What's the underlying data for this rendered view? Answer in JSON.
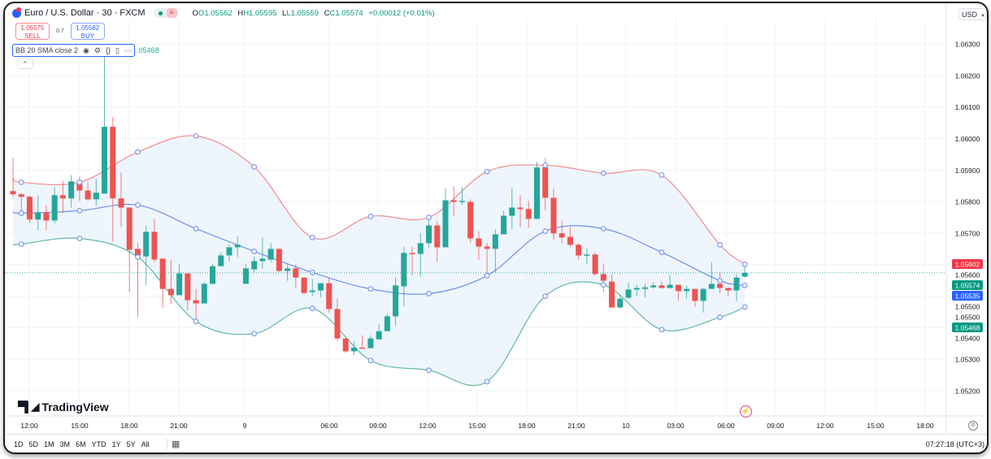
{
  "header": {
    "symbol": "Euro / U.S. Dollar · 30 · FXCM",
    "open": "O1.05562",
    "high": "H1.05595",
    "low": "L1.05559",
    "close": "C1.05574",
    "change": "+0.00012 (+0.01%)"
  },
  "trade": {
    "sell_price": "1.05575",
    "sell_label": "SELL",
    "spread": "0.7",
    "buy_price": "1.05582",
    "buy_label": "BUY"
  },
  "indicator": {
    "label": "BB 20 SMA close 2",
    "value_fragment": ".05468",
    "icons": [
      "eye-icon",
      "settings-icon",
      "source-code-icon",
      "trash-icon",
      "more-icon"
    ]
  },
  "currency": "USD",
  "brand": "TradingView",
  "ranges": [
    "1D",
    "5D",
    "1M",
    "3M",
    "6M",
    "YTD",
    "1Y",
    "5Y",
    "All"
  ],
  "clock": "07:27:18 (UTC+3)",
  "colors": {
    "up": "#26a69a",
    "down": "#ef5350",
    "bb_upper": "#f28b8b",
    "bb_basis": "#6f8ff0",
    "bb_lower": "#5fb8a5",
    "bb_fill": "#eaf3fd"
  },
  "chart_data": {
    "type": "candlestick",
    "interval": "30",
    "ylim": [
      1.052,
      1.063
    ],
    "price_ticks": [
      "1.06300",
      "1.06200",
      "1.06100",
      "1.06000",
      "1.05900",
      "1.05800",
      "1.05700",
      "1.05600",
      "1.05500",
      "1.05400",
      "1.05300",
      "1.05200"
    ],
    "time_ticks": [
      "12:00",
      "15:00",
      "18:00",
      "21:00",
      "9",
      "06:00",
      "09:00",
      "12:00",
      "15:00",
      "18:00",
      "21:00",
      "10",
      "03:00",
      "06:00",
      "09:00",
      "12:00",
      "15:00",
      "18:00"
    ],
    "price_labels": {
      "bb_upper": "1.05602",
      "last": "1.05574",
      "bb_basis": "1.05535",
      "tick": "1.05500",
      "bb_lower": "1.05468"
    },
    "ohlc": [
      [
        1.05833,
        1.05939,
        1.05815,
        1.05823
      ],
      [
        1.05823,
        1.05828,
        1.05771,
        1.05815
      ],
      [
        1.05815,
        1.0582,
        1.05732,
        1.05743
      ],
      [
        1.05743,
        1.0582,
        1.05709,
        1.05766
      ],
      [
        1.05766,
        1.05789,
        1.05709,
        1.0574
      ],
      [
        1.0574,
        1.05846,
        1.0573,
        1.0582
      ],
      [
        1.0582,
        1.05866,
        1.05763,
        1.0581
      ],
      [
        1.0581,
        1.05884,
        1.05781,
        1.05864
      ],
      [
        1.05856,
        1.05879,
        1.05802,
        1.05835
      ],
      [
        1.05835,
        1.05861,
        1.05802,
        1.05807
      ],
      [
        1.05807,
        1.05872,
        1.05786,
        1.05828
      ],
      [
        1.05825,
        1.063,
        1.05825,
        1.06037
      ],
      [
        1.06037,
        1.06068,
        1.05673,
        1.0581
      ],
      [
        1.0581,
        1.05892,
        1.05719,
        1.05781
      ],
      [
        1.05781,
        1.05781,
        1.05513,
        1.05647
      ],
      [
        1.0565,
        1.05668,
        1.05433,
        1.05629
      ],
      [
        1.05626,
        1.05724,
        1.05536,
        1.05704
      ],
      [
        1.05704,
        1.05745,
        1.05608,
        1.05616
      ],
      [
        1.05619,
        1.05619,
        1.05464,
        1.05523
      ],
      [
        1.05523,
        1.05616,
        1.05474,
        1.05503
      ],
      [
        1.05503,
        1.05603,
        1.05503,
        1.05572
      ],
      [
        1.05572,
        1.05572,
        1.05454,
        1.05487
      ],
      [
        1.05487,
        1.05523,
        1.05428,
        1.05477
      ],
      [
        1.05477,
        1.05544,
        1.05477,
        1.05539
      ],
      [
        1.05539,
        1.05601,
        1.05539,
        1.05595
      ],
      [
        1.05595,
        1.05639,
        1.05595,
        1.05629
      ],
      [
        1.05629,
        1.05665,
        1.05611,
        1.05655
      ],
      [
        1.05655,
        1.05691,
        1.05624,
        1.05663
      ],
      [
        1.05539,
        1.05601,
        1.05539,
        1.05588
      ],
      [
        1.05585,
        1.05626,
        1.05575,
        1.05611
      ],
      [
        1.05611,
        1.05686,
        1.05588,
        1.05619
      ],
      [
        1.05616,
        1.05668,
        1.05608,
        1.0565
      ],
      [
        1.0565,
        1.0565,
        1.05575,
        1.0558
      ],
      [
        1.0558,
        1.05603,
        1.05549,
        1.05588
      ],
      [
        1.05588,
        1.05601,
        1.05526,
        1.05559
      ],
      [
        1.05559,
        1.05559,
        1.05505,
        1.0551
      ],
      [
        1.05513,
        1.05554,
        1.055,
        1.05518
      ],
      [
        1.05518,
        1.05541,
        1.05497,
        1.05541
      ],
      [
        1.05541,
        1.05559,
        1.05446,
        1.05459
      ],
      [
        1.05459,
        1.05492,
        1.05358,
        1.05366
      ],
      [
        1.05366,
        1.05366,
        1.05319,
        1.05325
      ],
      [
        1.05325,
        1.05358,
        1.05312,
        1.05337
      ],
      [
        1.05337,
        1.05376,
        1.05335,
        1.05335
      ],
      [
        1.05335,
        1.05376,
        1.05335,
        1.05366
      ],
      [
        1.05363,
        1.05412,
        1.05363,
        1.05389
      ],
      [
        1.05389,
        1.05443,
        1.05389,
        1.05436
      ],
      [
        1.05436,
        1.05559,
        1.05407,
        1.05534
      ],
      [
        1.05531,
        1.05657,
        1.05469,
        1.05637
      ],
      [
        1.05637,
        1.05657,
        1.05565,
        1.05634
      ],
      [
        1.05634,
        1.05699,
        1.05562,
        1.05668
      ],
      [
        1.05668,
        1.05743,
        1.05652,
        1.05724
      ],
      [
        1.05724,
        1.05737,
        1.05608,
        1.05655
      ],
      [
        1.05655,
        1.05841,
        1.05655,
        1.05804
      ],
      [
        1.05804,
        1.05848,
        1.05755,
        1.05799
      ],
      [
        1.05799,
        1.05846,
        1.05789,
        1.05802
      ],
      [
        1.05799,
        1.05807,
        1.0567,
        1.05683
      ],
      [
        1.05683,
        1.05706,
        1.05616,
        1.05657
      ],
      [
        1.05657,
        1.05668,
        1.05565,
        1.0565
      ],
      [
        1.0565,
        1.05712,
        1.05577,
        1.05696
      ],
      [
        1.05696,
        1.05771,
        1.05696,
        1.05755
      ],
      [
        1.05755,
        1.05843,
        1.05712,
        1.05781
      ],
      [
        1.05781,
        1.0582,
        1.05719,
        1.05776
      ],
      [
        1.05776,
        1.05802,
        1.05717,
        1.05745
      ],
      [
        1.05745,
        1.05926,
        1.05745,
        1.05908
      ],
      [
        1.05908,
        1.05939,
        1.05771,
        1.05812
      ],
      [
        1.05812,
        1.05841,
        1.05678,
        1.05699
      ],
      [
        1.05699,
        1.0574,
        1.05668,
        1.05686
      ],
      [
        1.05688,
        1.05719,
        1.05655,
        1.05663
      ],
      [
        1.05663,
        1.05668,
        1.05616,
        1.05629
      ],
      [
        1.05629,
        1.05652,
        1.05601,
        1.05632
      ],
      [
        1.05632,
        1.05639,
        1.05565,
        1.0557
      ],
      [
        1.0557,
        1.05603,
        1.05513,
        1.05549
      ],
      [
        1.05546,
        1.0557,
        1.05464,
        1.05464
      ],
      [
        1.05464,
        1.05505,
        1.05461,
        1.05492
      ],
      [
        1.05495,
        1.05544,
        1.05492,
        1.05521
      ],
      [
        1.05521,
        1.05536,
        1.055,
        1.05526
      ],
      [
        1.05523,
        1.05539,
        1.05495,
        1.05528
      ],
      [
        1.05528,
        1.05544,
        1.05523,
        1.05534
      ],
      [
        1.05534,
        1.05546,
        1.05523,
        1.05526
      ],
      [
        1.05526,
        1.05567,
        1.05523,
        1.05536
      ],
      [
        1.05536,
        1.05536,
        1.05485,
        1.05516
      ],
      [
        1.05516,
        1.05534,
        1.05492,
        1.05523
      ],
      [
        1.05523,
        1.05523,
        1.05466,
        1.05485
      ],
      [
        1.05485,
        1.05526,
        1.05448,
        1.05523
      ],
      [
        1.05523,
        1.05608,
        1.05523,
        1.05539
      ],
      [
        1.05539,
        1.05577,
        1.0551,
        1.05526
      ],
      [
        1.05526,
        1.05526,
        1.055,
        1.05518
      ],
      [
        1.05518,
        1.0557,
        1.05485,
        1.05559
      ],
      [
        1.05562,
        1.05595,
        1.05559,
        1.05574
      ]
    ],
    "bollinger": {
      "index": [
        0,
        1,
        8,
        15,
        22,
        29,
        36,
        43,
        50,
        57,
        64,
        71,
        78,
        85,
        88
      ],
      "upper": [
        1.05874,
        1.05861,
        1.05861,
        1.05957,
        1.06008,
        1.0591,
        1.05686,
        1.05753,
        1.0575,
        1.05895,
        1.05915,
        1.0589,
        1.05884,
        1.05663,
        1.05601
      ],
      "basis": [
        1.05768,
        1.05763,
        1.05771,
        1.05789,
        1.05714,
        1.05642,
        1.05575,
        1.05523,
        1.05508,
        1.05565,
        1.05706,
        1.05714,
        1.05639,
        1.05549,
        1.05534
      ],
      "lower": [
        1.05663,
        1.05665,
        1.05683,
        1.05624,
        1.0542,
        1.05381,
        1.05461,
        1.05296,
        1.05265,
        1.05229,
        1.055,
        1.05536,
        1.05394,
        1.05433,
        1.05466
      ]
    }
  }
}
